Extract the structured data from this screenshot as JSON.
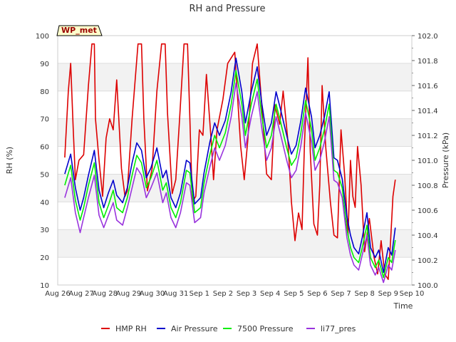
{
  "chart_data": {
    "type": "line",
    "title": "RH and Pressure",
    "xlabel": "Time",
    "ylabel": "RH (%)",
    "y2label": "Pressure (kPa)",
    "station_badge": "WP_met",
    "x_ticks": [
      "Aug 26",
      "Aug 27",
      "Aug 28",
      "Aug 29",
      "Aug 30",
      "Aug 31",
      "Sep 1",
      "Sep 2",
      "Sep 3",
      "Sep 4",
      "Sep 5",
      "Sep 6",
      "Sep 7",
      "Sep 8",
      "Sep 9",
      "Sep 10"
    ],
    "xlim_days": [
      0,
      15
    ],
    "ylim": [
      10,
      100
    ],
    "y_ticks": [
      10,
      20,
      30,
      40,
      50,
      60,
      70,
      80,
      90,
      100
    ],
    "y2lim": [
      100.0,
      102.0
    ],
    "y2_ticks": [
      "100.0",
      "100.2",
      "100.4",
      "100.6",
      "100.8",
      "101.0",
      "101.2",
      "101.4",
      "101.6",
      "101.8",
      "102.0"
    ],
    "grid": true,
    "legend_position": "bottom",
    "series": [
      {
        "name": "HMP RH",
        "axis": "left",
        "color": "#dd0000",
        "x": [
          0.3,
          0.45,
          0.55,
          0.65,
          0.75,
          0.9,
          1.1,
          1.3,
          1.45,
          1.55,
          1.6,
          1.75,
          1.9,
          2.05,
          2.2,
          2.35,
          2.5,
          2.7,
          2.85,
          2.95,
          3.15,
          3.4,
          3.55,
          3.65,
          3.8,
          4.0,
          4.2,
          4.4,
          4.55,
          4.65,
          4.85,
          5.0,
          5.15,
          5.35,
          5.5,
          5.6,
          5.7,
          5.85,
          6.0,
          6.15,
          6.3,
          6.5,
          6.6,
          6.75,
          7.0,
          7.2,
          7.5,
          7.75,
          7.9,
          8.05,
          8.25,
          8.45,
          8.6,
          8.85,
          9.05,
          9.2,
          9.4,
          9.55,
          9.75,
          9.9,
          10.05,
          10.2,
          10.35,
          10.45,
          10.6,
          10.7,
          10.85,
          11.0,
          11.1,
          11.2,
          11.35,
          11.55,
          11.7,
          11.85,
          12.0,
          12.15,
          12.3,
          12.4,
          12.5,
          12.6,
          12.7,
          12.85,
          13.0,
          13.2,
          13.4,
          13.55,
          13.7,
          13.85,
          14.0,
          14.1,
          14.2,
          14.3
        ],
        "y": [
          56,
          80,
          90,
          68,
          48,
          55,
          57,
          82,
          97,
          97,
          70,
          55,
          42,
          63,
          70,
          66,
          84,
          52,
          42,
          44,
          70,
          97,
          97,
          70,
          44,
          52,
          80,
          97,
          97,
          72,
          43,
          48,
          68,
          97,
          97,
          70,
          40,
          42,
          66,
          64,
          86,
          62,
          48,
          66,
          77,
          90,
          94,
          60,
          48,
          62,
          90,
          97,
          80,
          50,
          48,
          75,
          68,
          80,
          62,
          40,
          26,
          36,
          30,
          60,
          92,
          58,
          32,
          28,
          46,
          82,
          60,
          40,
          28,
          27,
          66,
          50,
          28,
          55,
          42,
          38,
          60,
          46,
          22,
          34,
          20,
          14,
          26,
          14,
          12,
          26,
          42,
          48
        ]
      },
      {
        "name": "Air Pressure",
        "axis": "right",
        "color": "#0000cc",
        "x": [
          0.3,
          0.55,
          0.75,
          0.95,
          1.1,
          1.3,
          1.55,
          1.75,
          1.95,
          2.15,
          2.35,
          2.5,
          2.75,
          2.95,
          3.15,
          3.35,
          3.55,
          3.75,
          3.95,
          4.2,
          4.45,
          4.6,
          4.8,
          5.0,
          5.2,
          5.45,
          5.6,
          5.8,
          6.05,
          6.2,
          6.45,
          6.65,
          6.85,
          7.1,
          7.35,
          7.55,
          7.8,
          7.95,
          8.2,
          8.45,
          8.65,
          8.85,
          9.05,
          9.25,
          9.45,
          9.7,
          9.9,
          10.1,
          10.3,
          10.5,
          10.75,
          10.9,
          11.1,
          11.3,
          11.5,
          11.7,
          11.85,
          12.05,
          12.25,
          12.4,
          12.55,
          12.75,
          12.9,
          13.1,
          13.25,
          13.45,
          13.6,
          13.8,
          14.0,
          14.15,
          14.3
        ],
        "y": [
          100.89,
          101.05,
          100.78,
          100.6,
          100.7,
          100.88,
          101.08,
          100.76,
          100.62,
          100.74,
          100.84,
          100.72,
          100.66,
          100.78,
          100.98,
          101.14,
          101.08,
          100.86,
          100.94,
          101.1,
          100.86,
          100.92,
          100.7,
          100.62,
          100.74,
          101.0,
          100.98,
          100.65,
          100.7,
          100.9,
          101.15,
          101.3,
          101.2,
          101.32,
          101.55,
          101.82,
          101.55,
          101.3,
          101.55,
          101.75,
          101.45,
          101.2,
          101.3,
          101.55,
          101.4,
          101.2,
          101.05,
          101.12,
          101.32,
          101.58,
          101.35,
          101.1,
          101.2,
          101.35,
          101.55,
          101.02,
          101.0,
          100.85,
          100.55,
          100.4,
          100.3,
          100.25,
          100.38,
          100.58,
          100.3,
          100.22,
          100.28,
          100.1,
          100.3,
          100.24,
          100.46
        ]
      },
      {
        "name": "7500 Pressure",
        "axis": "right",
        "color": "#00ee00",
        "x": [
          0.3,
          0.55,
          0.75,
          0.95,
          1.1,
          1.3,
          1.55,
          1.75,
          1.95,
          2.15,
          2.35,
          2.5,
          2.75,
          2.95,
          3.15,
          3.35,
          3.55,
          3.75,
          3.95,
          4.2,
          4.45,
          4.6,
          4.8,
          5.0,
          5.2,
          5.45,
          5.6,
          5.8,
          6.05,
          6.2,
          6.45,
          6.65,
          6.85,
          7.1,
          7.35,
          7.55,
          7.8,
          7.95,
          8.2,
          8.45,
          8.65,
          8.85,
          9.05,
          9.25,
          9.45,
          9.7,
          9.9,
          10.1,
          10.3,
          10.5,
          10.75,
          10.9,
          11.1,
          11.3,
          11.5,
          11.7,
          11.85,
          12.05,
          12.25,
          12.4,
          12.55,
          12.75,
          12.9,
          13.1,
          13.25,
          13.45,
          13.6,
          13.8,
          14.0,
          14.15,
          14.3
        ],
        "y": [
          100.8,
          100.96,
          100.68,
          100.52,
          100.62,
          100.8,
          100.98,
          100.66,
          100.54,
          100.64,
          100.76,
          100.62,
          100.58,
          100.7,
          100.88,
          101.04,
          100.98,
          100.78,
          100.86,
          101.0,
          100.76,
          100.82,
          100.62,
          100.54,
          100.66,
          100.92,
          100.9,
          100.58,
          100.62,
          100.82,
          101.05,
          101.2,
          101.1,
          101.22,
          101.45,
          101.72,
          101.45,
          101.2,
          101.45,
          101.65,
          101.35,
          101.1,
          101.2,
          101.45,
          101.3,
          101.1,
          100.96,
          101.02,
          101.22,
          101.48,
          101.25,
          101.0,
          101.1,
          101.25,
          101.45,
          100.92,
          100.9,
          100.78,
          100.45,
          100.3,
          100.22,
          100.18,
          100.3,
          100.48,
          100.22,
          100.14,
          100.2,
          100.06,
          100.22,
          100.18,
          100.36
        ]
      },
      {
        "name": "li77_pres",
        "axis": "right",
        "color": "#9933dd",
        "x": [
          0.3,
          0.55,
          0.75,
          0.95,
          1.1,
          1.3,
          1.55,
          1.75,
          1.95,
          2.15,
          2.35,
          2.5,
          2.75,
          2.95,
          3.15,
          3.35,
          3.55,
          3.75,
          3.95,
          4.2,
          4.45,
          4.6,
          4.8,
          5.0,
          5.2,
          5.45,
          5.6,
          5.8,
          6.05,
          6.2,
          6.45,
          6.65,
          6.85,
          7.1,
          7.35,
          7.55,
          7.8,
          7.95,
          8.2,
          8.45,
          8.65,
          8.85,
          9.05,
          9.25,
          9.45,
          9.7,
          9.9,
          10.1,
          10.3,
          10.5,
          10.75,
          10.9,
          11.1,
          11.3,
          11.5,
          11.7,
          11.85,
          12.05,
          12.25,
          12.4,
          12.55,
          12.75,
          12.9,
          13.1,
          13.25,
          13.45,
          13.6,
          13.8,
          14.0,
          14.15,
          14.3
        ],
        "y": [
          100.7,
          100.86,
          100.58,
          100.42,
          100.54,
          100.7,
          100.88,
          100.56,
          100.46,
          100.56,
          100.66,
          100.52,
          100.48,
          100.62,
          100.78,
          100.94,
          100.88,
          100.7,
          100.78,
          100.9,
          100.66,
          100.74,
          100.54,
          100.46,
          100.58,
          100.82,
          100.8,
          100.5,
          100.54,
          100.74,
          100.95,
          101.1,
          101.0,
          101.12,
          101.35,
          101.62,
          101.35,
          101.1,
          101.35,
          101.55,
          101.25,
          101.0,
          101.1,
          101.35,
          101.2,
          101.0,
          100.86,
          100.92,
          101.12,
          101.38,
          101.15,
          100.92,
          101.0,
          101.15,
          101.35,
          100.84,
          100.82,
          100.7,
          100.38,
          100.24,
          100.16,
          100.12,
          100.24,
          100.4,
          100.16,
          100.08,
          100.14,
          100.02,
          100.16,
          100.12,
          100.28
        ]
      }
    ]
  }
}
